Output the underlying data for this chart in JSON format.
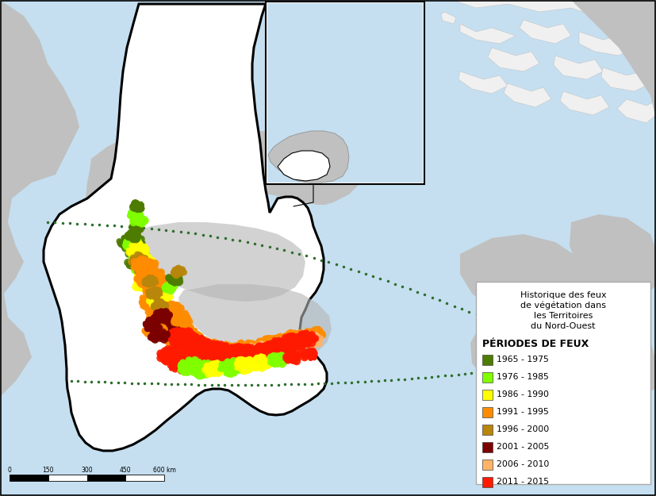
{
  "title": "Historique des feux\nde végétation dans\nles Territoires\ndu Nord-Ouest",
  "legend_title": "PÉRIODES DE FEUX",
  "periods": [
    {
      "label": "1965 - 1975",
      "color": "#4d7c00"
    },
    {
      "label": "1976 - 1985",
      "color": "#80ff00"
    },
    {
      "label": "1986 - 1990",
      "color": "#ffff00"
    },
    {
      "label": "1991 - 1995",
      "color": "#ff8c00"
    },
    {
      "label": "1996 - 2000",
      "color": "#b8860b"
    },
    {
      "label": "2001 - 2005",
      "color": "#7b0000"
    },
    {
      "label": "2006 - 2010",
      "color": "#ffb366"
    },
    {
      "label": "2011 - 2015",
      "color": "#ff1a00"
    }
  ],
  "ocean_color": "#c5dff0",
  "arctic_island_color": "#f0f0f0",
  "land_gray_color": "#c0c0c0",
  "land_gray_dark": "#a8a8a8",
  "nwt_fill": "#ffffff",
  "nwt_border": "#000000",
  "inset_border": "#000000",
  "figsize": [
    8.27,
    6.25
  ],
  "dpi": 100
}
